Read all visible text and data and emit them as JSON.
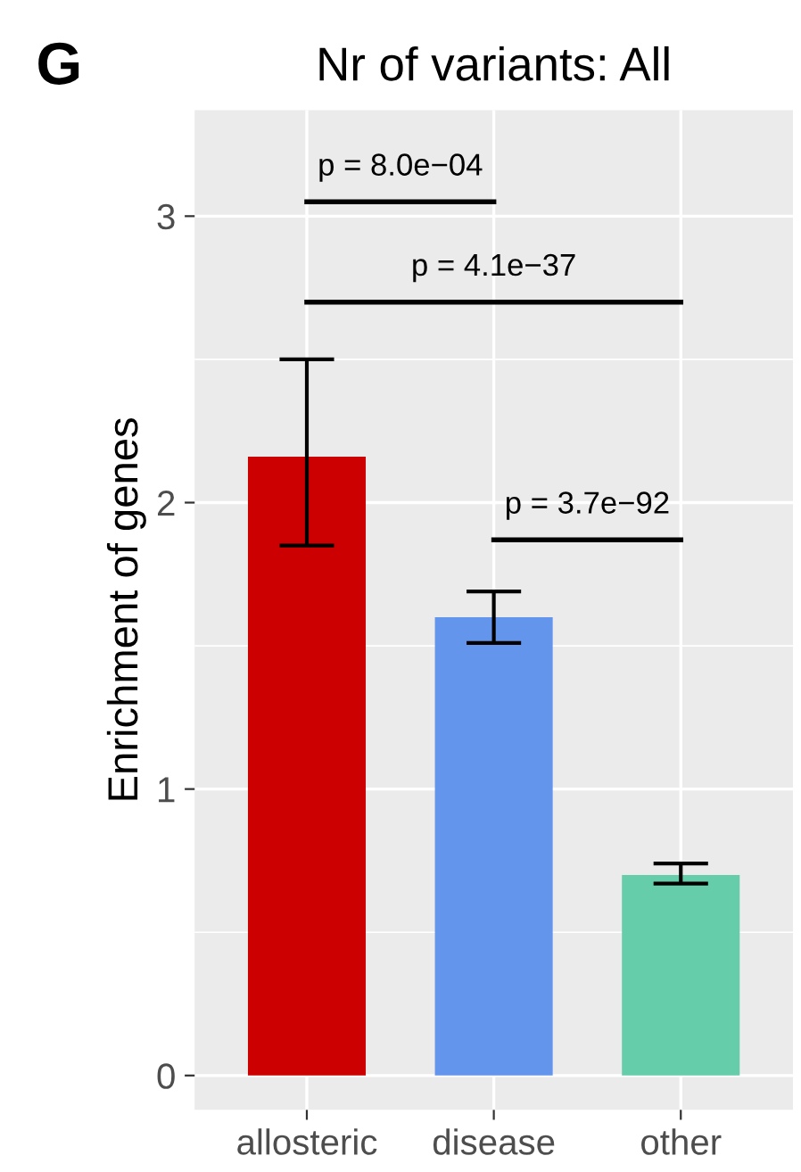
{
  "chart_data": {
    "type": "bar",
    "title": "Nr of variants: All",
    "ylabel": "Enrichment of genes",
    "categories": [
      "allosteric",
      "disease",
      "other"
    ],
    "values": [
      2.16,
      1.6,
      0.7
    ],
    "colors": [
      "#cc0000",
      "#6495ed",
      "#66cdaa"
    ],
    "errors": [
      [
        1.85,
        2.5
      ],
      [
        1.51,
        1.69
      ],
      [
        0.67,
        0.74
      ]
    ],
    "ylim": [
      -0.12,
      3.37
    ],
    "yticks": [
      0,
      1,
      2,
      3
    ],
    "grid": true,
    "annotations": [
      "G",
      "p = 8.0e−04",
      "p = 4.1e−37",
      "p = 3.7e−92"
    ]
  }
}
